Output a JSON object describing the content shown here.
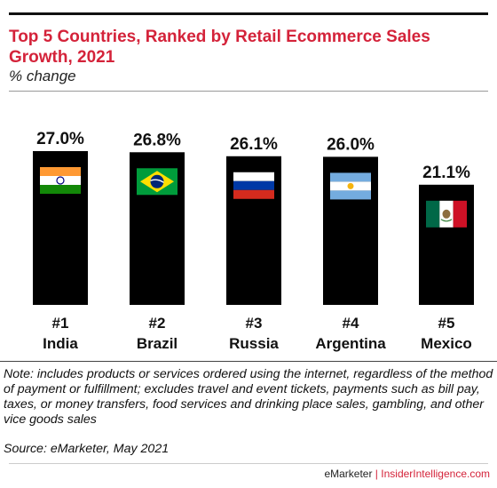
{
  "chart_data": {
    "type": "bar",
    "title": "Top 5 Countries, Ranked by Retail Ecommerce Sales Growth, 2021",
    "subtitle": "% change",
    "categories": [
      "India",
      "Brazil",
      "Russia",
      "Argentina",
      "Mexico"
    ],
    "ranks": [
      "#1",
      "#2",
      "#3",
      "#4",
      "#5"
    ],
    "values": [
      27.0,
      26.8,
      26.1,
      26.0,
      21.1
    ],
    "value_labels": [
      "27.0%",
      "26.8%",
      "26.1%",
      "26.0%",
      "21.1%"
    ],
    "flags": [
      "india-flag",
      "brazil-flag",
      "russia-flag",
      "argentina-flag",
      "mexico-flag"
    ],
    "bar_color": "#000000",
    "ylim": [
      0,
      27
    ],
    "grid": false
  },
  "note": "Note: includes products or services ordered using the internet, regardless of the method of payment or fulfillment; excludes travel and event tickets, payments such as bill pay, taxes, or money transfers, food services and drinking place sales, gambling, and other vice goods sales",
  "source": "Source: eMarketer, May 2021",
  "brand": {
    "left": "eMarketer",
    "separator": " | ",
    "right": "InsiderIntelligence.com"
  },
  "colors": {
    "title": "#d4233a",
    "bar": "#000000"
  }
}
